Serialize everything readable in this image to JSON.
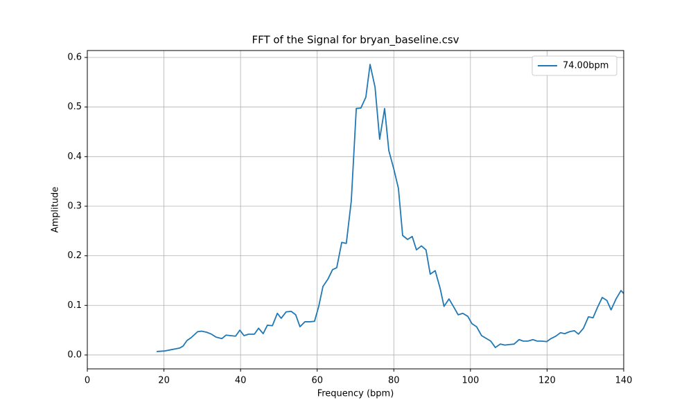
{
  "chart_data": {
    "type": "line",
    "title": "FFT of the Signal for bryan_baseline.csv",
    "x_label": "Frequency (bpm)",
    "y_label": "Amplitude",
    "xlim": [
      0,
      140
    ],
    "ylim": [
      -0.028,
      0.614
    ],
    "xticks": [
      0,
      20,
      40,
      60,
      80,
      100,
      120,
      140
    ],
    "yticks": [
      {
        "value": 0,
        "label": "0.0"
      },
      {
        "value": 0.1,
        "label": "0.1"
      },
      {
        "value": 0.2,
        "label": "0.2"
      },
      {
        "value": 0.3,
        "label": "0.3"
      },
      {
        "value": 0.4,
        "label": "0.4"
      },
      {
        "value": 0.5,
        "label": "0.5"
      },
      {
        "value": 0.6,
        "label": "0.6"
      }
    ],
    "grid": true,
    "legend_position": "upper right",
    "x": [
      18.1,
      20.1,
      22.1,
      24.1,
      25,
      26,
      27.1,
      28.8,
      29.8,
      31.1,
      32.4,
      33.6,
      35.1,
      36.2,
      37.4,
      38.7,
      39.8,
      40.9,
      42.1,
      43.6,
      44.7,
      45.9,
      47,
      48.3,
      49.6,
      50.6,
      51.9,
      53.2,
      54.4,
      55.5,
      56.8,
      58.1,
      59.3,
      60.4,
      61.5,
      62.8,
      64,
      65.1,
      66.4,
      67.6,
      68.9,
      70.2,
      71.4,
      72.7,
      73.8,
      75.1,
      76.3,
      77.6,
      78.7,
      80,
      81.2,
      82.3,
      83.6,
      84.8,
      85.9,
      87.2,
      88.4,
      89.5,
      90.8,
      92.1,
      93.1,
      94.4,
      95.7,
      96.8,
      98,
      99.3,
      100.4,
      101.6,
      102.9,
      104.2,
      105.3,
      106.5,
      107.8,
      109,
      110.1,
      111.4,
      112.7,
      113.8,
      115,
      116.3,
      117.4,
      118.6,
      119.9,
      121,
      122.3,
      123.5,
      124.6,
      125.9,
      127.1,
      128.2,
      129.5,
      130.8,
      132,
      133.1,
      134.4,
      135.6,
      136.7,
      138,
      139.3,
      140
    ],
    "series": [
      {
        "name": "74.00bpm",
        "color": "#1f77b4",
        "values": [
          0.007,
          0.008,
          0.011,
          0.014,
          0.018,
          0.029,
          0.035,
          0.047,
          0.048,
          0.046,
          0.042,
          0.036,
          0.033,
          0.04,
          0.039,
          0.038,
          0.05,
          0.039,
          0.042,
          0.042,
          0.054,
          0.043,
          0.06,
          0.059,
          0.084,
          0.074,
          0.087,
          0.088,
          0.081,
          0.057,
          0.067,
          0.067,
          0.068,
          0.098,
          0.138,
          0.153,
          0.172,
          0.176,
          0.227,
          0.225,
          0.311,
          0.497,
          0.498,
          0.52,
          0.586,
          0.54,
          0.435,
          0.497,
          0.412,
          0.375,
          0.336,
          0.241,
          0.233,
          0.239,
          0.212,
          0.22,
          0.212,
          0.163,
          0.17,
          0.134,
          0.098,
          0.113,
          0.096,
          0.081,
          0.084,
          0.078,
          0.063,
          0.057,
          0.039,
          0.033,
          0.028,
          0.015,
          0.022,
          0.02,
          0.021,
          0.022,
          0.031,
          0.028,
          0.028,
          0.031,
          0.028,
          0.028,
          0.027,
          0.033,
          0.038,
          0.045,
          0.043,
          0.047,
          0.049,
          0.042,
          0.054,
          0.077,
          0.075,
          0.095,
          0.116,
          0.11,
          0.091,
          0.113,
          0.13,
          0.124
        ]
      }
    ]
  }
}
